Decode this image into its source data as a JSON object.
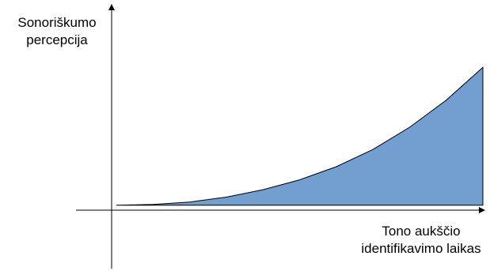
{
  "chart_data": {
    "type": "area",
    "title": "",
    "ylabel_lines": [
      "Sonoriškumo",
      "percepcija"
    ],
    "xlabel_lines": [
      "Tono aukščio",
      "identifikavimo laikas"
    ],
    "ticks": "none",
    "grid": false,
    "legend": "none",
    "xlim": [
      0,
      1
    ],
    "ylim": [
      -0.4,
      1.25
    ],
    "series": [
      {
        "x": [
          0,
          0.1,
          0.2,
          0.3,
          0.4,
          0.5,
          0.6,
          0.7,
          0.8,
          0.9,
          1.0
        ],
        "y": [
          0.0,
          0.005,
          0.02,
          0.05,
          0.095,
          0.155,
          0.235,
          0.34,
          0.475,
          0.64,
          0.84
        ],
        "fill": "#729fcf",
        "stroke": "#000000"
      }
    ]
  }
}
